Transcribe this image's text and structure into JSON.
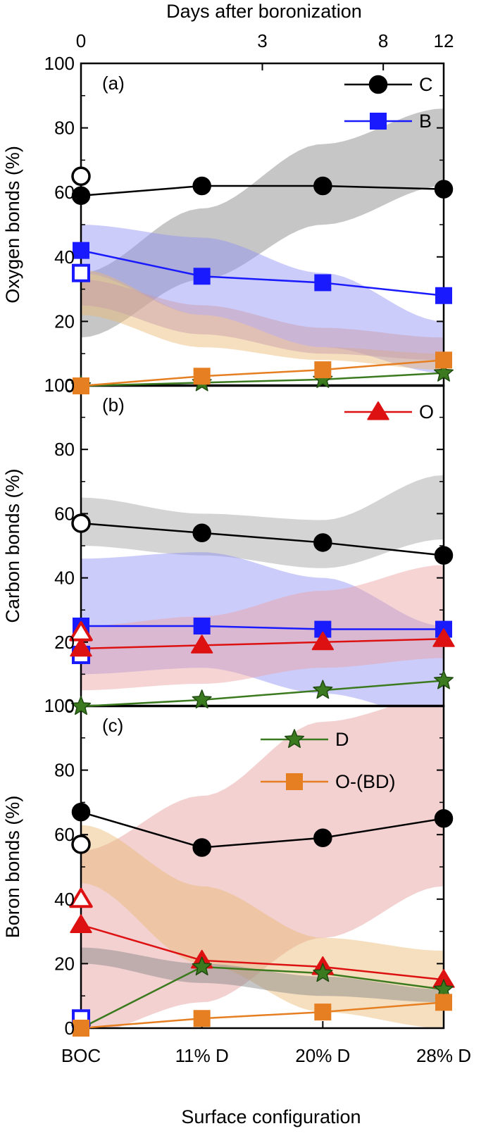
{
  "figure": {
    "top_axis_title": "Days after boronization",
    "top_axis_ticks": [
      {
        "label": "0",
        "at": "BOC"
      },
      {
        "label": "3",
        "at": 1.5
      },
      {
        "label": "8",
        "at": 2.5
      },
      {
        "label": "12",
        "at": "28% D"
      }
    ],
    "x_axis_title": "Surface configuration"
  },
  "chart_data": [
    {
      "type": "line",
      "panel_label": "(a)",
      "ylabel": "Oxygen bonds (%)",
      "ylim": [
        0,
        100
      ],
      "yticks": [
        0,
        20,
        40,
        60,
        80,
        100
      ],
      "categories": [
        "BOC",
        "11% D",
        "20% D",
        "28% D"
      ],
      "legend": [
        "C",
        "B"
      ],
      "series": [
        {
          "name": "C",
          "marker": "circle",
          "color": "#000000",
          "values": [
            59,
            62,
            62,
            61
          ],
          "open_boc_value": 65
        },
        {
          "name": "B",
          "marker": "square",
          "color": "#1a1aff",
          "values": [
            42,
            34,
            32,
            28
          ],
          "open_boc_value": 35
        },
        {
          "name": "D",
          "marker": "star",
          "color": "#3b7a1e",
          "values": [
            0,
            1,
            2,
            4
          ]
        },
        {
          "name": "O-(BD)",
          "marker": "square",
          "color": "#e67e22",
          "values": [
            0,
            3,
            5,
            8
          ]
        }
      ],
      "bands": [
        {
          "color": "#808080",
          "lower": [
            15,
            33,
            50,
            62
          ],
          "upper": [
            35,
            55,
            75,
            86
          ]
        },
        {
          "color": "#8f8ff5",
          "lower": [
            35,
            22,
            12,
            4
          ],
          "upper": [
            50,
            46,
            35,
            20
          ]
        },
        {
          "color": "#e8b870",
          "lower": [
            22,
            12,
            8,
            5
          ],
          "upper": [
            36,
            22,
            12,
            10
          ]
        },
        {
          "color": "#c89aa8",
          "lower": [
            25,
            16,
            10,
            8
          ],
          "upper": [
            33,
            25,
            18,
            15
          ]
        }
      ]
    },
    {
      "type": "line",
      "panel_label": "(b)",
      "ylabel": "Carbon bonds (%)",
      "ylim": [
        0,
        100
      ],
      "yticks": [
        0,
        20,
        40,
        60,
        80,
        100
      ],
      "categories": [
        "BOC",
        "11% D",
        "20% D",
        "28% D"
      ],
      "legend": [
        "O"
      ],
      "series": [
        {
          "name": "C",
          "marker": "circle",
          "color": "#000000",
          "values": [
            57,
            54,
            51,
            47
          ],
          "open_boc_value": 57
        },
        {
          "name": "B",
          "marker": "square",
          "color": "#1a1aff",
          "values": [
            25,
            25,
            24,
            24
          ],
          "open_boc_value": 16
        },
        {
          "name": "O",
          "marker": "triangle",
          "color": "#dd1111",
          "values": [
            18,
            19,
            20,
            21
          ],
          "open_boc_value": 23
        },
        {
          "name": "D",
          "marker": "star",
          "color": "#3b7a1e",
          "values": [
            0,
            2,
            5,
            8
          ]
        }
      ],
      "bands": [
        {
          "color": "#a0a0a0",
          "lower": [
            50,
            47,
            43,
            52
          ],
          "upper": [
            65,
            60,
            58,
            72
          ]
        },
        {
          "color": "#8f8ff5",
          "lower": [
            10,
            12,
            4,
            -4
          ],
          "upper": [
            46,
            48,
            40,
            25
          ]
        },
        {
          "color": "#eaa0a0",
          "lower": [
            5,
            7,
            12,
            15
          ],
          "upper": [
            25,
            28,
            36,
            44
          ]
        }
      ]
    },
    {
      "type": "line",
      "panel_label": "(c)",
      "ylabel": "Boron bonds (%)",
      "ylim": [
        0,
        100
      ],
      "yticks": [
        0,
        20,
        40,
        60,
        80,
        100
      ],
      "categories": [
        "BOC",
        "11% D",
        "20% D",
        "28% D"
      ],
      "legend": [
        "D",
        "O-(BD)"
      ],
      "series": [
        {
          "name": "C",
          "marker": "circle",
          "color": "#000000",
          "values": [
            67,
            56,
            59,
            65
          ],
          "open_boc_value": 57
        },
        {
          "name": "O",
          "marker": "triangle",
          "color": "#dd1111",
          "values": [
            32,
            21,
            19,
            15
          ],
          "open_boc_value": 40
        },
        {
          "name": "D",
          "marker": "star",
          "color": "#3b7a1e",
          "values": [
            0,
            19,
            17,
            12
          ]
        },
        {
          "name": "B",
          "marker": "square",
          "color": "#1a1aff",
          "values": [
            null,
            null,
            null,
            null
          ],
          "open_boc_value": 3
        },
        {
          "name": "O-(BD)",
          "marker": "square",
          "color": "#e67e22",
          "values": [
            0,
            3,
            5,
            8
          ]
        }
      ],
      "bands": [
        {
          "color": "#e59a9a",
          "lower": [
            -2,
            8,
            28,
            44
          ],
          "upper": [
            55,
            72,
            95,
            103
          ]
        },
        {
          "color": "#e8b870",
          "lower": [
            45,
            20,
            5,
            0
          ],
          "upper": [
            63,
            44,
            28,
            24
          ]
        },
        {
          "color": "#808080",
          "lower": [
            20,
            14,
            10,
            8
          ],
          "upper": [
            25,
            20,
            16,
            12
          ]
        }
      ]
    }
  ]
}
